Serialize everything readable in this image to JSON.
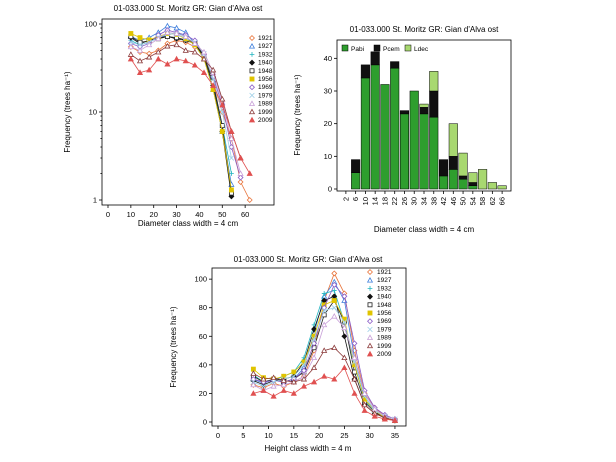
{
  "colors": {
    "1921": "#e8743b",
    "1927": "#3f7fdc",
    "1932": "#22b5c0",
    "1940": "#111111",
    "1948": "#222222",
    "1956": "#e0c400",
    "1969": "#8a5cc7",
    "1979": "#9fd0e8",
    "1989": "#c8a0d8",
    "1999": "#8b3a3a",
    "2009": "#e05050",
    "Pabi": "#2e9e2e",
    "Pcem": "#101010",
    "Ldec": "#a8d870"
  },
  "chart_data": [
    {
      "id": "diameter_freq",
      "type": "line",
      "title": "01-033.000 St. Moritz GR: Gian d'Alva ost",
      "xlabel": "Diameter class width =  4 cm",
      "ylabel": "Frequency (trees ha⁻¹)",
      "xlim": [
        0,
        70
      ],
      "ylim": [
        1,
        100
      ],
      "yscale": "log",
      "xticks": [
        "0",
        "10",
        "20",
        "30",
        "40",
        "50",
        "60"
      ],
      "yticks": [
        "1",
        "10",
        "100"
      ],
      "x": [
        10,
        14,
        18,
        22,
        26,
        30,
        34,
        38,
        42,
        46,
        50,
        54,
        58,
        62,
        66
      ],
      "legend_position": "right",
      "series": [
        {
          "name": "1921",
          "values": [
            55,
            48,
            46,
            50,
            60,
            65,
            62,
            55,
            45,
            22,
            10,
            5,
            1.6,
            1,
            null
          ]
        },
        {
          "name": "1927",
          "values": [
            72,
            65,
            70,
            80,
            95,
            90,
            80,
            60,
            40,
            18,
            6,
            1.5,
            null,
            null,
            null
          ]
        },
        {
          "name": "1932",
          "values": [
            65,
            58,
            62,
            70,
            75,
            80,
            72,
            58,
            40,
            20,
            7,
            2,
            null,
            null,
            null
          ]
        },
        {
          "name": "1940",
          "values": [
            70,
            60,
            65,
            70,
            72,
            68,
            65,
            60,
            42,
            20,
            6,
            1.1,
            null,
            null,
            null
          ]
        },
        {
          "name": "1948",
          "values": [
            72,
            62,
            64,
            68,
            72,
            70,
            66,
            62,
            44,
            22,
            7,
            1.2,
            null,
            null,
            null
          ]
        },
        {
          "name": "1956",
          "values": [
            78,
            70,
            66,
            72,
            78,
            76,
            68,
            58,
            40,
            18,
            6,
            1.3,
            null,
            null,
            null
          ]
        },
        {
          "name": "1969",
          "values": [
            60,
            55,
            60,
            75,
            85,
            80,
            75,
            65,
            45,
            25,
            12,
            4,
            1.8,
            null,
            null
          ]
        },
        {
          "name": "1979",
          "values": [
            62,
            58,
            62,
            70,
            78,
            76,
            70,
            62,
            46,
            24,
            10,
            3,
            null,
            null,
            null
          ]
        },
        {
          "name": "1989",
          "values": [
            55,
            50,
            58,
            68,
            80,
            78,
            72,
            60,
            48,
            28,
            13,
            5,
            2,
            null,
            null
          ]
        },
        {
          "name": "1999",
          "values": [
            45,
            38,
            42,
            48,
            56,
            58,
            50,
            48,
            40,
            30,
            14,
            6,
            3,
            null,
            null
          ]
        },
        {
          "name": "2009",
          "values": [
            40,
            28,
            30,
            40,
            35,
            40,
            38,
            34,
            28,
            20,
            12,
            6,
            3,
            2,
            null
          ]
        }
      ]
    },
    {
      "id": "diameter_species",
      "type": "bar",
      "stacked": true,
      "xlabel": "Diameter class width =  4 cm",
      "ylabel": "Frequency (trees ha⁻¹)",
      "ylim": [
        0,
        45
      ],
      "yticks": [
        "0",
        "10",
        "20",
        "30",
        "40"
      ],
      "categories": [
        "2",
        "6",
        "10",
        "14",
        "18",
        "22",
        "26",
        "30",
        "34",
        "38",
        "42",
        "46",
        "50",
        "54",
        "58",
        "62",
        "66"
      ],
      "legend_position": "top",
      "series": [
        {
          "name": "Pabi",
          "values": [
            0,
            5,
            34,
            38,
            32,
            37,
            23,
            30,
            23,
            22,
            4,
            6,
            3,
            1,
            0,
            0,
            0
          ]
        },
        {
          "name": "Pcem",
          "values": [
            0,
            4,
            4,
            4,
            0,
            2,
            1,
            0,
            2,
            8,
            5,
            4,
            1,
            1,
            0,
            0,
            0
          ]
        },
        {
          "name": "Ldec",
          "values": [
            0,
            0,
            0,
            0,
            0,
            0,
            0,
            0,
            1,
            6,
            0,
            10,
            7,
            3,
            6,
            2,
            1
          ]
        }
      ]
    },
    {
      "id": "height_freq",
      "type": "line",
      "title": "01-033.000 St. Moritz GR: Gian d'Alva ost",
      "xlabel": "Height class width =  4 m",
      "ylabel": "Frequency (trees ha⁻¹)",
      "xlim": [
        0,
        36
      ],
      "ylim": [
        0,
        105
      ],
      "xticks": [
        "0",
        "5",
        "10",
        "15",
        "20",
        "25",
        "30",
        "35"
      ],
      "yticks": [
        "0",
        "20",
        "40",
        "60",
        "80",
        "100"
      ],
      "x": [
        7,
        9,
        11,
        13,
        15,
        17,
        19,
        21,
        23,
        25,
        27,
        29,
        31,
        33,
        35
      ],
      "legend_position": "right",
      "series": [
        {
          "name": "1921",
          "values": [
            26,
            24,
            27,
            25,
            28,
            32,
            50,
            85,
            104,
            90,
            50,
            20,
            10,
            4,
            2
          ]
        },
        {
          "name": "1927",
          "values": [
            30,
            27,
            30,
            28,
            30,
            38,
            62,
            88,
            98,
            85,
            45,
            18,
            8,
            4,
            2
          ]
        },
        {
          "name": "1932",
          "values": [
            33,
            28,
            29,
            32,
            35,
            45,
            68,
            90,
            92,
            70,
            40,
            15,
            8,
            4,
            2
          ]
        },
        {
          "name": "1940",
          "values": [
            29,
            26,
            29,
            30,
            32,
            42,
            65,
            85,
            88,
            60,
            30,
            12,
            6,
            3,
            1
          ]
        },
        {
          "name": "1948",
          "values": [
            32,
            28,
            30,
            28,
            30,
            35,
            52,
            75,
            85,
            70,
            35,
            14,
            7,
            3,
            1
          ]
        },
        {
          "name": "1956",
          "values": [
            37,
            31,
            30,
            32,
            35,
            42,
            60,
            82,
            85,
            72,
            40,
            16,
            8,
            3,
            1
          ]
        },
        {
          "name": "1969",
          "values": [
            30,
            28,
            29,
            28,
            30,
            36,
            55,
            80,
            96,
            88,
            55,
            22,
            10,
            5,
            2
          ]
        },
        {
          "name": "1979",
          "values": [
            28,
            25,
            28,
            30,
            32,
            40,
            58,
            78,
            80,
            70,
            42,
            18,
            8,
            4,
            2
          ]
        },
        {
          "name": "1989",
          "values": [
            26,
            22,
            25,
            26,
            28,
            32,
            45,
            68,
            74,
            66,
            45,
            20,
            9,
            4,
            2
          ]
        },
        {
          "name": "1999",
          "values": [
            34,
            30,
            31,
            29,
            28,
            30,
            38,
            50,
            52,
            45,
            30,
            12,
            6,
            3,
            1
          ]
        },
        {
          "name": "2009",
          "values": [
            20,
            22,
            18,
            22,
            20,
            25,
            28,
            32,
            30,
            38,
            20,
            8,
            4,
            2,
            1
          ]
        }
      ]
    }
  ]
}
